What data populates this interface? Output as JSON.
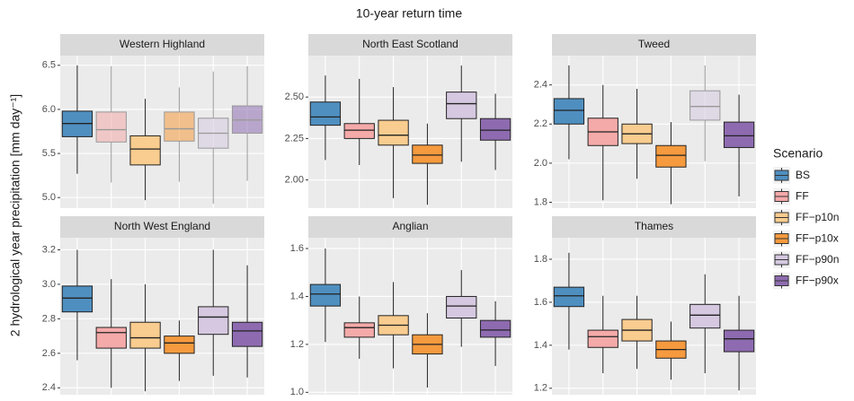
{
  "title": "10-year return time",
  "y_label": "2 hydrological year precipitation [mm day⁻¹]",
  "legend": {
    "title": "Scenario",
    "items": [
      {
        "name": "BS",
        "color": "#4f8fc0"
      },
      {
        "name": "FF",
        "color": "#f4aaa9"
      },
      {
        "name": "FF−p10n",
        "color": "#f9cc8f"
      },
      {
        "name": "FF−p10x",
        "color": "#f59a3e"
      },
      {
        "name": "FF−p90n",
        "color": "#d5c8e0"
      },
      {
        "name": "FF−p90x",
        "color": "#8e6bb0"
      }
    ]
  },
  "chart_data": [
    {
      "type": "box",
      "title": "Western Highland",
      "ylim": [
        4.88,
        6.61
      ],
      "yticks": [
        {
          "value": 5,
          "label": "5.0"
        },
        5.5,
        {
          "value": 6,
          "label": "6.0"
        },
        6.5
      ],
      "faded": [
        1,
        3,
        4,
        5
      ],
      "boxes": [
        {
          "min": 5.27,
          "q1": 5.69,
          "median": 5.84,
          "q3": 5.98,
          "max": 6.5
        },
        {
          "min": 5.17,
          "q1": 5.63,
          "median": 5.77,
          "q3": 5.97,
          "max": 6.49
        },
        {
          "min": 4.97,
          "q1": 5.37,
          "median": 5.55,
          "q3": 5.7,
          "max": 6.12
        },
        {
          "min": 5.18,
          "q1": 5.64,
          "median": 5.78,
          "q3": 5.97,
          "max": 6.25
        },
        {
          "min": 4.93,
          "q1": 5.56,
          "median": 5.73,
          "q3": 5.9,
          "max": 6.43
        },
        {
          "min": 5.19,
          "q1": 5.73,
          "median": 5.88,
          "q3": 6.04,
          "max": 6.49
        }
      ]
    },
    {
      "type": "box",
      "title": "North East Scotland",
      "ylim": [
        1.83,
        2.75
      ],
      "yticks": [
        {
          "value": 2,
          "label": "2.00"
        },
        2.25,
        {
          "value": 2.5,
          "label": "2.50"
        }
      ],
      "faded": [],
      "boxes": [
        {
          "min": 2.12,
          "q1": 2.33,
          "median": 2.38,
          "q3": 2.47,
          "max": 2.63
        },
        {
          "min": 2.09,
          "q1": 2.25,
          "median": 2.3,
          "q3": 2.34,
          "max": 2.61
        },
        {
          "min": 1.89,
          "q1": 2.21,
          "median": 2.27,
          "q3": 2.36,
          "max": 2.56
        },
        {
          "min": 1.85,
          "q1": 2.1,
          "median": 2.15,
          "q3": 2.21,
          "max": 2.34
        },
        {
          "min": 2.11,
          "q1": 2.37,
          "median": 2.46,
          "q3": 2.53,
          "max": 2.69
        },
        {
          "min": 2.06,
          "q1": 2.24,
          "median": 2.3,
          "q3": 2.37,
          "max": 2.52
        }
      ]
    },
    {
      "type": "box",
      "title": "Tweed",
      "ylim": [
        1.77,
        2.55
      ],
      "yticks": [
        1.8,
        {
          "value": 2,
          "label": "2.0"
        },
        2.2,
        2.4
      ],
      "faded": [
        4
      ],
      "boxes": [
        {
          "min": 2.02,
          "q1": 2.2,
          "median": 2.27,
          "q3": 2.33,
          "max": 2.5
        },
        {
          "min": 1.81,
          "q1": 2.09,
          "median": 2.16,
          "q3": 2.23,
          "max": 2.4
        },
        {
          "min": 1.92,
          "q1": 2.1,
          "median": 2.15,
          "q3": 2.2,
          "max": 2.38
        },
        {
          "min": 1.79,
          "q1": 1.98,
          "median": 2.04,
          "q3": 2.09,
          "max": 2.21
        },
        {
          "min": 2.01,
          "q1": 2.22,
          "median": 2.29,
          "q3": 2.37,
          "max": 2.5
        },
        {
          "min": 1.83,
          "q1": 2.08,
          "median": 2.14,
          "q3": 2.21,
          "max": 2.35
        }
      ]
    },
    {
      "type": "box",
      "title": "North West England",
      "ylim": [
        2.36,
        3.27
      ],
      "yticks": [
        2.4,
        2.6,
        2.8,
        {
          "value": 3,
          "label": "3.0"
        },
        3.2
      ],
      "faded": [],
      "boxes": [
        {
          "min": 2.56,
          "q1": 2.84,
          "median": 2.92,
          "q3": 2.99,
          "max": 3.2
        },
        {
          "min": 2.4,
          "q1": 2.63,
          "median": 2.72,
          "q3": 2.75,
          "max": 3.03
        },
        {
          "min": 2.38,
          "q1": 2.63,
          "median": 2.69,
          "q3": 2.78,
          "max": 3.0
        },
        {
          "min": 2.44,
          "q1": 2.6,
          "median": 2.66,
          "q3": 2.7,
          "max": 2.79
        },
        {
          "min": 2.47,
          "q1": 2.71,
          "median": 2.81,
          "q3": 2.87,
          "max": 3.2
        },
        {
          "min": 2.46,
          "q1": 2.64,
          "median": 2.73,
          "q3": 2.78,
          "max": 3.11
        }
      ]
    },
    {
      "type": "box",
      "title": "Anglian",
      "ylim": [
        0.99,
        1.645
      ],
      "yticks": [
        {
          "value": 1,
          "label": "1.0"
        },
        1.2,
        1.4,
        1.6
      ],
      "faded": [],
      "boxes": [
        {
          "min": 1.21,
          "q1": 1.36,
          "median": 1.41,
          "q3": 1.45,
          "max": 1.6
        },
        {
          "min": 1.14,
          "q1": 1.23,
          "median": 1.27,
          "q3": 1.29,
          "max": 1.4
        },
        {
          "min": 1.1,
          "q1": 1.24,
          "median": 1.28,
          "q3": 1.32,
          "max": 1.46
        },
        {
          "min": 1.02,
          "q1": 1.16,
          "median": 1.2,
          "q3": 1.24,
          "max": 1.33
        },
        {
          "min": 1.19,
          "q1": 1.31,
          "median": 1.36,
          "q3": 1.4,
          "max": 1.51
        },
        {
          "min": 1.11,
          "q1": 1.23,
          "median": 1.26,
          "q3": 1.3,
          "max": 1.38
        }
      ]
    },
    {
      "type": "box",
      "title": "Thames",
      "ylim": [
        1.17,
        1.9
      ],
      "yticks": [
        1.2,
        1.4,
        1.6,
        1.8
      ],
      "faded": [],
      "boxes": [
        {
          "min": 1.38,
          "q1": 1.58,
          "median": 1.63,
          "q3": 1.67,
          "max": 1.83
        },
        {
          "min": 1.27,
          "q1": 1.39,
          "median": 1.44,
          "q3": 1.47,
          "max": 1.63
        },
        {
          "min": 1.29,
          "q1": 1.42,
          "median": 1.47,
          "q3": 1.52,
          "max": 1.63
        },
        {
          "min": 1.24,
          "q1": 1.34,
          "median": 1.38,
          "q3": 1.42,
          "max": 1.51
        },
        {
          "min": 1.27,
          "q1": 1.48,
          "median": 1.54,
          "q3": 1.59,
          "max": 1.73
        },
        {
          "min": 1.19,
          "q1": 1.37,
          "median": 1.43,
          "q3": 1.47,
          "max": 1.63
        }
      ]
    }
  ]
}
